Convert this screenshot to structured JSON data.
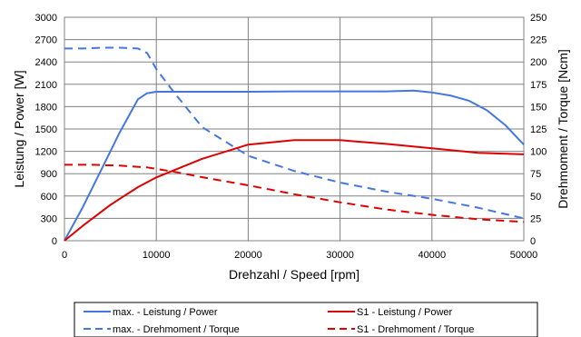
{
  "chart_data": {
    "type": "line",
    "xlabel": "Drehzahl / Speed [rpm]",
    "ylabel_left": "Leistung / Power [W]",
    "ylabel_right": "Drehmoment / Torque [Ncm]",
    "xlim": [
      0,
      50000
    ],
    "ylim_left": [
      0,
      3000
    ],
    "ylim_right": [
      0,
      250
    ],
    "x_ticks": [
      0,
      10000,
      20000,
      30000,
      40000,
      50000
    ],
    "y_left_ticks": [
      0,
      300,
      600,
      900,
      1200,
      1500,
      1800,
      2100,
      2400,
      2700,
      3000
    ],
    "y_right_ticks": [
      0,
      25,
      50,
      75,
      100,
      125,
      150,
      175,
      200,
      225,
      250
    ],
    "grid": true,
    "legend_position": "bottom",
    "series": [
      {
        "name": "max. - Leistung / Power",
        "axis": "left",
        "color": "#4477dd",
        "style": "solid",
        "x": [
          0,
          2000,
          4000,
          6000,
          8000,
          9000,
          10000,
          15000,
          20000,
          25000,
          30000,
          35000,
          38000,
          40000,
          42000,
          44000,
          46000,
          48000,
          50000
        ],
        "y": [
          0,
          450,
          950,
          1450,
          1900,
          1980,
          2000,
          2000,
          2000,
          2005,
          2005,
          2005,
          2015,
          1990,
          1950,
          1880,
          1750,
          1550,
          1290
        ]
      },
      {
        "name": "S1 - Leistung / Power",
        "axis": "left",
        "color": "#dd0000",
        "style": "solid",
        "x": [
          0,
          2000,
          5000,
          8000,
          10000,
          15000,
          20000,
          25000,
          30000,
          35000,
          40000,
          45000,
          50000
        ],
        "y": [
          0,
          200,
          480,
          720,
          850,
          1100,
          1290,
          1350,
          1350,
          1300,
          1240,
          1180,
          1160
        ]
      },
      {
        "name": "max. - Drehmoment / Torque",
        "axis": "right",
        "color": "#4477dd",
        "style": "dashed",
        "x": [
          0,
          2000,
          4000,
          6000,
          8000,
          9000,
          10000,
          12000,
          15000,
          20000,
          25000,
          30000,
          35000,
          40000,
          45000,
          50000
        ],
        "y": [
          215,
          215,
          216,
          216,
          215,
          210,
          192,
          165,
          127,
          95,
          78,
          65,
          55,
          47,
          37,
          25
        ]
      },
      {
        "name": "S1 - Drehmoment / Torque",
        "axis": "right",
        "color": "#dd0000",
        "style": "dashed",
        "x": [
          0,
          3000,
          6000,
          9000,
          12000,
          15000,
          20000,
          25000,
          30000,
          35000,
          40000,
          45000,
          50000
        ],
        "y": [
          85,
          85,
          84,
          82,
          77,
          71,
          62,
          52,
          43,
          35,
          29,
          24,
          21
        ]
      }
    ]
  }
}
